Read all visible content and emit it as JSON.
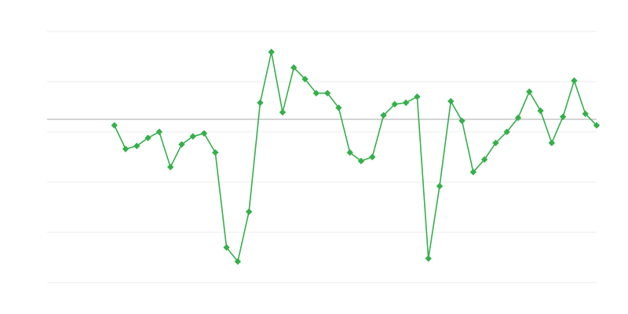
{
  "chart_data": {
    "type": "line",
    "title": "",
    "xlabel": "",
    "ylabel": "",
    "x": [
      0,
      1,
      2,
      3,
      4,
      5,
      6,
      7,
      8,
      9,
      10,
      11,
      12,
      13,
      14,
      15,
      16,
      17,
      18,
      19,
      20,
      21,
      22,
      23,
      24,
      25,
      26,
      27,
      28,
      29,
      30,
      31,
      32,
      33,
      34,
      35,
      36,
      37,
      38,
      39,
      40,
      41,
      42,
      43,
      44,
      45,
      46,
      47,
      48,
      49
    ],
    "xlim": [
      0,
      49
    ],
    "ylim": [
      0,
      5
    ],
    "grid_values": [
      0,
      1,
      2,
      3,
      4,
      5
    ],
    "baseline": 3.25,
    "grid": true,
    "legend": "none",
    "marker": "diamond",
    "colors": {
      "series": "#34b04a",
      "grid": "#ececec",
      "baseline": "#aaaaaa"
    },
    "series": [
      {
        "values": [
          null,
          null,
          null,
          null,
          null,
          null,
          3.13,
          2.66,
          2.72,
          2.88,
          3.0,
          2.3,
          2.75,
          2.91,
          2.97,
          2.59,
          0.7,
          0.42,
          1.41,
          3.58,
          4.59,
          3.39,
          4.28,
          4.05,
          3.77,
          3.77,
          3.48,
          2.59,
          2.42,
          2.5,
          3.33,
          3.55,
          3.58,
          3.7,
          0.48,
          1.92,
          3.61,
          3.22,
          2.2,
          2.45,
          2.78,
          3.0,
          3.28,
          3.8,
          3.42,
          2.78,
          3.3,
          4.02,
          3.36,
          3.13
        ]
      }
    ]
  }
}
